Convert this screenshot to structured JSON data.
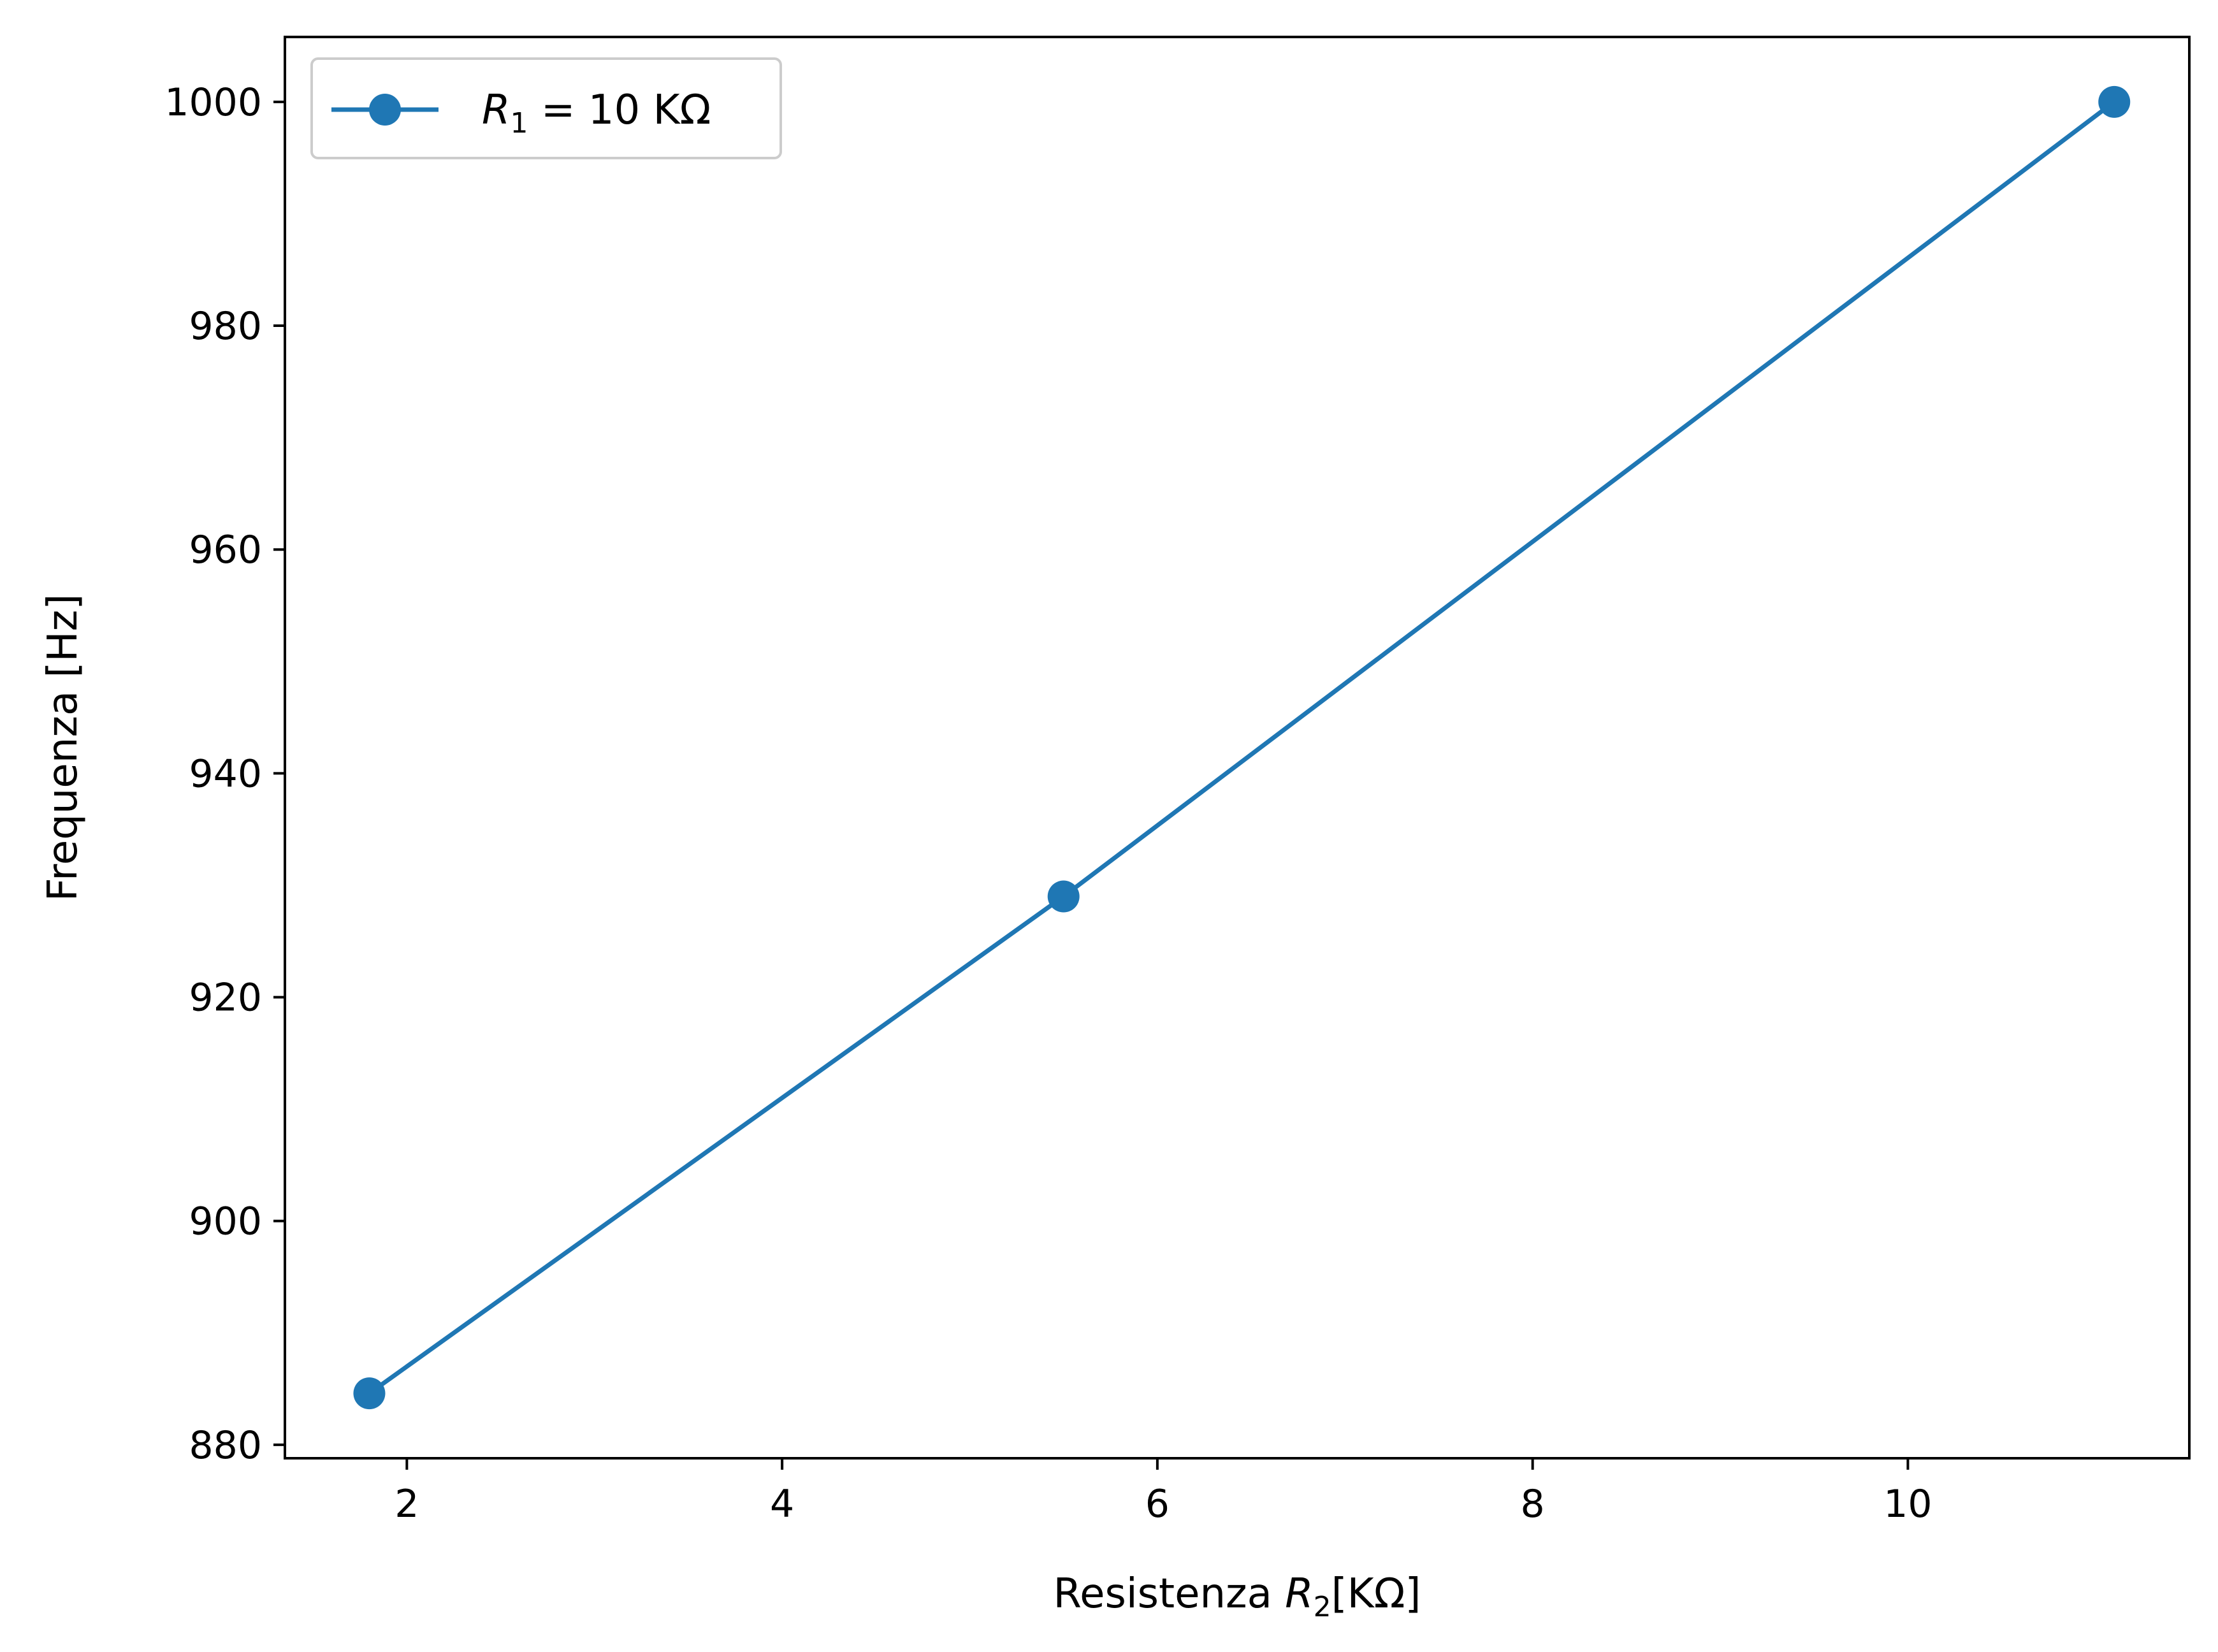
{
  "chart_data": {
    "type": "line",
    "title": "",
    "xlabel": {
      "prefix": "Resistenza ",
      "symbol": "R",
      "sub": "2",
      "suffix": "[KΩ]"
    },
    "ylabel": "Frequenza [Hz]",
    "xlim": [
      1.35,
      11.5
    ],
    "ylim": [
      878.8,
      1005.8
    ],
    "xticks": [
      2,
      4,
      6,
      8,
      10
    ],
    "yticks": [
      880,
      900,
      920,
      940,
      960,
      980,
      1000
    ],
    "grid": false,
    "legend_position": "top-left",
    "series": [
      {
        "name": {
          "symbol": "R",
          "sub": "1",
          "eq": " = 10 KΩ"
        },
        "color": "#1f77b4",
        "marker": "circle",
        "x": [
          1.8,
          5.5,
          11.1
        ],
        "y": [
          884.6,
          929.0,
          1000.0
        ]
      }
    ]
  }
}
